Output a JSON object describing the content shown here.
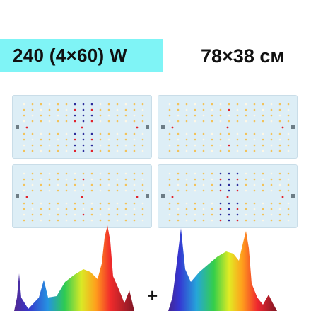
{
  "header": {
    "power_label": "240 (4×60) W",
    "size_label": "78×38 см"
  },
  "boards": [
    {
      "name": "board-top-left",
      "accent": "mixed-blue-red"
    },
    {
      "name": "board-top-right",
      "accent": "warm-red"
    },
    {
      "name": "board-bottom-left",
      "accent": "warm-red"
    },
    {
      "name": "board-bottom-right",
      "accent": "mixed-blue-red"
    }
  ],
  "spectra": {
    "plus_sign": "+"
  },
  "colors": {
    "badge": "#7ff4f6",
    "board": "#ddeef6",
    "led_warm": "#f2c25a",
    "led_white": "#fff8e6",
    "led_red": "#e0212b",
    "led_blue": "#2a2a9a"
  }
}
